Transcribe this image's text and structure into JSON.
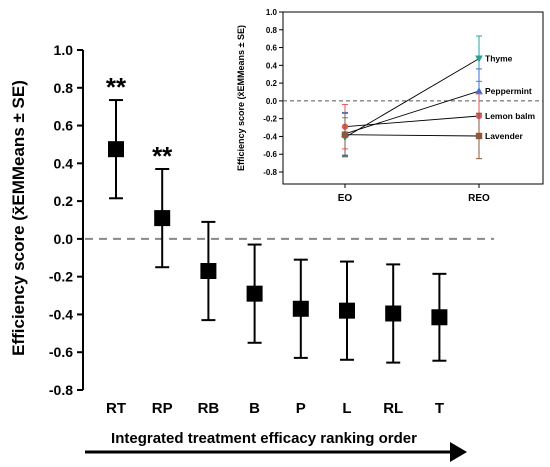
{
  "chart_data": [
    {
      "type": "scatter",
      "ylabel": "Efficiency score (x̄EMMeans ± SE)",
      "xlabel": "Integrated treatment efficacy ranking order",
      "categories": [
        "RT",
        "RP",
        "RB",
        "B",
        "P",
        "L",
        "RL",
        "T"
      ],
      "values": [
        0.475,
        0.11,
        -0.17,
        -0.29,
        -0.37,
        -0.38,
        -0.395,
        -0.415
      ],
      "error_low": [
        0.215,
        -0.15,
        -0.43,
        -0.55,
        -0.63,
        -0.64,
        -0.655,
        -0.645
      ],
      "error_high": [
        0.735,
        0.37,
        0.09,
        -0.03,
        -0.11,
        -0.12,
        -0.135,
        -0.185
      ],
      "annotations": [
        {
          "category": "RT",
          "text": "**"
        },
        {
          "category": "RP",
          "text": "**"
        }
      ],
      "ylim": [
        -0.8,
        1.0
      ],
      "yticks": [
        1.0,
        0.8,
        0.6,
        0.4,
        0.2,
        0.0,
        -0.2,
        -0.4,
        -0.6,
        -0.8
      ],
      "ytick_labels": [
        "1.0",
        "0.8",
        "0.6",
        "0.4",
        "0.2",
        "0.0",
        "-0.2",
        "-0.4",
        "-0.6",
        "-0.8"
      ],
      "reference_line": 0.0,
      "grid": false
    },
    {
      "type": "line",
      "ylabel": "Efficiency score (x̄EMMeans ± SE)",
      "categories": [
        "EO",
        "REO"
      ],
      "ylim": [
        -0.8,
        1.0
      ],
      "yticks": [
        1.0,
        0.8,
        0.6,
        0.4,
        0.2,
        0.0,
        -0.2,
        -0.4,
        -0.6,
        -0.8
      ],
      "ytick_labels": [
        "1.0",
        "0.8",
        "0.6",
        "0.4",
        "0.2",
        "0.0",
        "-0.2",
        "-0.4",
        "-0.6",
        "-0.8"
      ],
      "reference_line": 0.0,
      "grid": false,
      "legend": "end-labels",
      "series": [
        {
          "name": "Thyme",
          "values": [
            -0.41,
            0.475
          ],
          "error_low": [
            -0.63,
            0.22
          ],
          "error_high": [
            -0.19,
            0.73
          ],
          "color": "#2aa198",
          "marker": "triangle-down"
        },
        {
          "name": "Peppermint",
          "values": [
            -0.37,
            0.11
          ],
          "error_low": [
            -0.61,
            -0.14
          ],
          "error_high": [
            -0.13,
            0.36
          ],
          "color": "#3a6fd8",
          "marker": "triangle-up"
        },
        {
          "name": "Lemon balm",
          "values": [
            -0.29,
            -0.17
          ],
          "error_low": [
            -0.54,
            -0.42
          ],
          "error_high": [
            -0.04,
            0.08
          ],
          "color": "#e05a5a",
          "marker": "circle"
        },
        {
          "name": "Lavender",
          "values": [
            -0.38,
            -0.395
          ],
          "error_low": [
            -0.62,
            -0.65
          ],
          "error_high": [
            -0.14,
            -0.14
          ],
          "color": "#8b5a3c",
          "marker": "square"
        }
      ]
    }
  ]
}
